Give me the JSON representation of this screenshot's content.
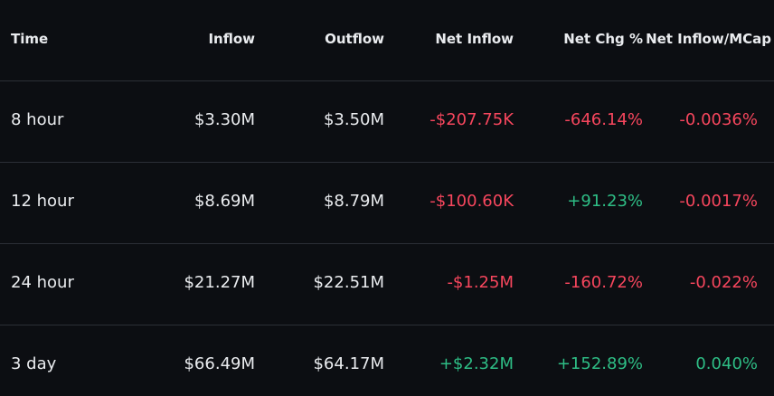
{
  "table": {
    "headers": [
      "Time",
      "Inflow",
      "Outflow",
      "Net Inflow",
      "Net Chg %",
      "Net Inflow/MCap"
    ],
    "rows": [
      [
        "8 hour",
        "$3.30M",
        "$3.50M",
        "-$207.75K",
        "-646.14%",
        "-0.0036%"
      ],
      [
        "12 hour",
        "$8.69M",
        "$8.79M",
        "-$100.60K",
        "+91.23%",
        "-0.0017%"
      ],
      [
        "24 hour",
        "$21.27M",
        "$22.51M",
        "-$1.25M",
        "-160.72%",
        "-0.022%"
      ],
      [
        "3 day",
        "$66.49M",
        "$64.17M",
        "+$2.32M",
        "+152.89%",
        "0.040%"
      ]
    ]
  }
}
